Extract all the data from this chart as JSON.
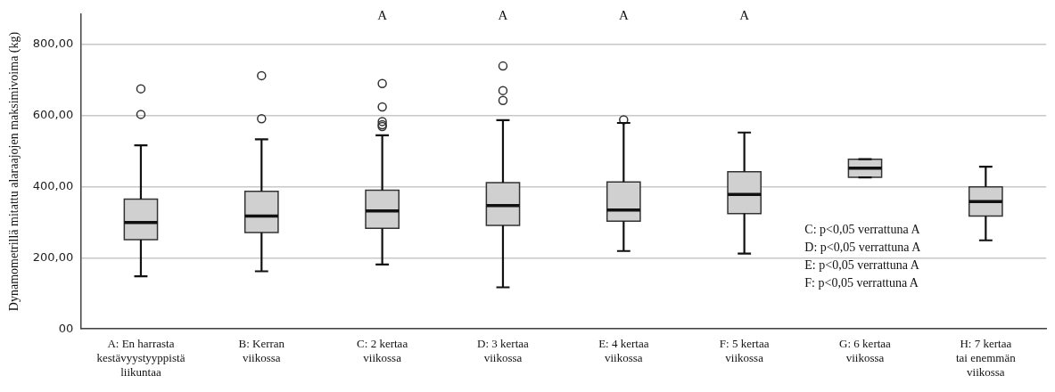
{
  "chart_data": {
    "type": "box",
    "ylabel": "Dynamometrillä mitattu alaraajojen maksimivoima (kg)",
    "categories": [
      "A: En harrasta\nkestävyystyyppistä\nliikuntaa",
      "B: Kerran\nviikossa",
      "C: 2 kertaa\nviikossa",
      "D: 3 kertaa\nviikossa",
      "E: 4 kertaa\nviikossa",
      "F: 5 kertaa\nviikossa",
      "G: 6 kertaa\nviikossa",
      "H: 7 kertaa\ntai enemmän\nviikossa"
    ],
    "color": "#d0d0d0",
    "boxes": [
      {
        "low": 148,
        "q1": 251,
        "median": 299,
        "q3": 365,
        "high": 516,
        "outliers": [
          603,
          675
        ]
      },
      {
        "low": 162,
        "q1": 271,
        "median": 317,
        "q3": 387,
        "high": 533,
        "outliers": [
          591,
          712
        ]
      },
      {
        "low": 181,
        "q1": 283,
        "median": 332,
        "q3": 390,
        "high": 544,
        "outliers": [
          569,
          574,
          583,
          624,
          690
        ]
      },
      {
        "low": 117,
        "q1": 291,
        "median": 347,
        "q3": 411,
        "high": 587,
        "outliers": [
          642,
          670,
          739
        ]
      },
      {
        "low": 219,
        "q1": 303,
        "median": 334,
        "q3": 413,
        "high": 579,
        "outliers": [
          588
        ]
      },
      {
        "low": 212,
        "q1": 324,
        "median": 378,
        "q3": 442,
        "high": 552
      },
      {
        "low": 426,
        "q1": 426,
        "median": 452,
        "q3": 477,
        "high": 477
      },
      {
        "low": 249,
        "q1": 317,
        "median": 358,
        "q3": 399,
        "high": 456
      }
    ],
    "ylim": [
      0,
      885
    ],
    "yticks": [
      {
        "value": 0,
        "label": "00"
      },
      {
        "value": 200,
        "label": "200,00"
      },
      {
        "value": 400,
        "label": "400,00"
      },
      {
        "value": 600,
        "label": "600,00"
      },
      {
        "value": 800,
        "label": "800,00"
      }
    ],
    "grid": "y",
    "legend": false,
    "annotations": [
      "A",
      "A",
      "A",
      "A",
      "C: p<0,05 verrattuna A",
      "D: p<0,05 verrattuna A",
      "E: p<0,05 verrattuna A",
      "F: p<0,05 verrattuna A"
    ]
  }
}
